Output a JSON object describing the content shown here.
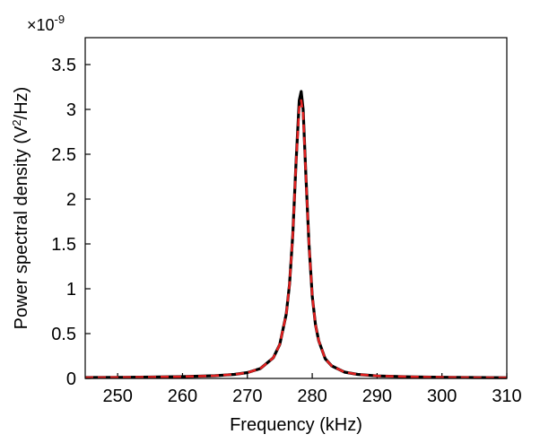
{
  "chart_data": {
    "type": "line",
    "title": "",
    "xlabel": "Frequency (kHz)",
    "ylabel_prefix": "Power spectral density (V",
    "ylabel_sup": "2",
    "ylabel_suffix": "/Hz)",
    "y_multiplier_base": "×10",
    "y_multiplier_exp": "-9",
    "xlim": [
      245,
      310
    ],
    "ylim": [
      0,
      3.8
    ],
    "x_ticks": [
      250,
      260,
      270,
      280,
      290,
      300,
      310
    ],
    "x_tick_labels": [
      "250",
      "260",
      "270",
      "280",
      "290",
      "300",
      "310"
    ],
    "y_ticks": [
      0,
      0.5,
      1,
      1.5,
      2,
      2.5,
      3,
      3.5
    ],
    "y_tick_labels": [
      "0",
      "0.5",
      "1",
      "1.5",
      "2",
      "2.5",
      "3",
      "3.5"
    ],
    "grid": false,
    "legend": "none",
    "series": [
      {
        "color": "#000000",
        "style": "solid",
        "x": [
          245,
          250,
          255,
          260,
          265,
          268,
          270,
          272,
          274,
          275,
          276,
          276.5,
          277,
          277.5,
          278,
          278.3,
          278.6,
          279,
          279.5,
          280,
          280.5,
          281,
          282,
          283,
          285,
          287,
          290,
          295,
          300,
          305,
          310
        ],
        "y": [
          0.01,
          0.012,
          0.015,
          0.02,
          0.03,
          0.045,
          0.065,
          0.11,
          0.23,
          0.38,
          0.72,
          1.05,
          1.6,
          2.4,
          3.1,
          3.2,
          3.0,
          2.3,
          1.5,
          0.92,
          0.6,
          0.42,
          0.22,
          0.14,
          0.07,
          0.045,
          0.028,
          0.018,
          0.013,
          0.01,
          0.008
        ]
      },
      {
        "color": "#e02020",
        "style": "dashed",
        "x": [
          245,
          250,
          255,
          260,
          265,
          268,
          270,
          272,
          274,
          275,
          276,
          276.5,
          277,
          277.5,
          278,
          278.3,
          278.6,
          279,
          279.5,
          280,
          280.5,
          281,
          282,
          283,
          285,
          287,
          290,
          295,
          300,
          305,
          310
        ],
        "y": [
          0.01,
          0.012,
          0.015,
          0.02,
          0.03,
          0.045,
          0.065,
          0.11,
          0.23,
          0.38,
          0.72,
          1.05,
          1.6,
          2.4,
          3.02,
          3.1,
          2.95,
          2.3,
          1.5,
          0.92,
          0.6,
          0.42,
          0.22,
          0.14,
          0.07,
          0.045,
          0.028,
          0.018,
          0.013,
          0.01,
          0.008
        ]
      }
    ]
  }
}
